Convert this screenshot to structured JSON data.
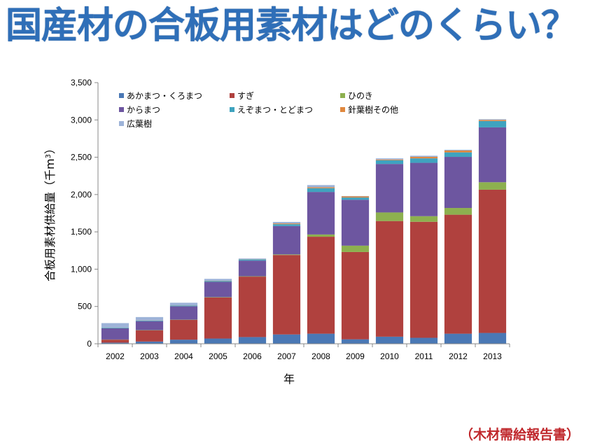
{
  "slide": {
    "title": "国産材の合板用素材はどのくらい？",
    "source": "（木材需給報告書）"
  },
  "chart_data": {
    "type": "bar",
    "stacked": true,
    "categories": [
      "2002",
      "2003",
      "2004",
      "2005",
      "2006",
      "2007",
      "2008",
      "2009",
      "2010",
      "2011",
      "2012",
      "2013"
    ],
    "xlabel": "年",
    "ylabel_main": "合板用素材供給量（千m",
    "ylabel_sup": "3",
    "ylabel_end": "）",
    "ylim": [
      0,
      3500
    ],
    "yticks": [
      0,
      500,
      1000,
      1500,
      2000,
      2500,
      3000,
      3500
    ],
    "ytick_labels": [
      "0",
      "500",
      "1,000",
      "1,500",
      "2,000",
      "2,500",
      "3,000",
      "3,500"
    ],
    "grid": false,
    "legend_position": "top-left",
    "series": [
      {
        "name": "あかまつ・くろまつ",
        "color": "#4a78b5",
        "values": [
          15,
          30,
          55,
          70,
          90,
          125,
          135,
          60,
          95,
          80,
          135,
          145
        ]
      },
      {
        "name": "すぎ",
        "color": "#b0413e",
        "values": [
          40,
          150,
          265,
          550,
          810,
          1065,
          1300,
          1170,
          1550,
          1555,
          1595,
          1920
        ]
      },
      {
        "name": "ひのき",
        "color": "#8db04f",
        "values": [
          2,
          3,
          3,
          5,
          5,
          8,
          30,
          85,
          115,
          75,
          90,
          100
        ]
      },
      {
        "name": "からまつ",
        "color": "#6d56a0",
        "values": [
          150,
          120,
          180,
          205,
          210,
          380,
          570,
          615,
          650,
          715,
          685,
          735
        ]
      },
      {
        "name": "えぞまつ・とどまつ",
        "color": "#3fa3bf",
        "values": [
          8,
          8,
          10,
          12,
          15,
          25,
          50,
          30,
          50,
          60,
          60,
          85
        ]
      },
      {
        "name": "針葉樹その他",
        "color": "#e0883e",
        "values": [
          2,
          2,
          2,
          3,
          3,
          10,
          12,
          15,
          10,
          20,
          25,
          15
        ]
      },
      {
        "name": "広葉樹",
        "color": "#9db3d8",
        "values": [
          60,
          45,
          35,
          25,
          10,
          20,
          30,
          5,
          15,
          15,
          10,
          10
        ]
      }
    ]
  }
}
